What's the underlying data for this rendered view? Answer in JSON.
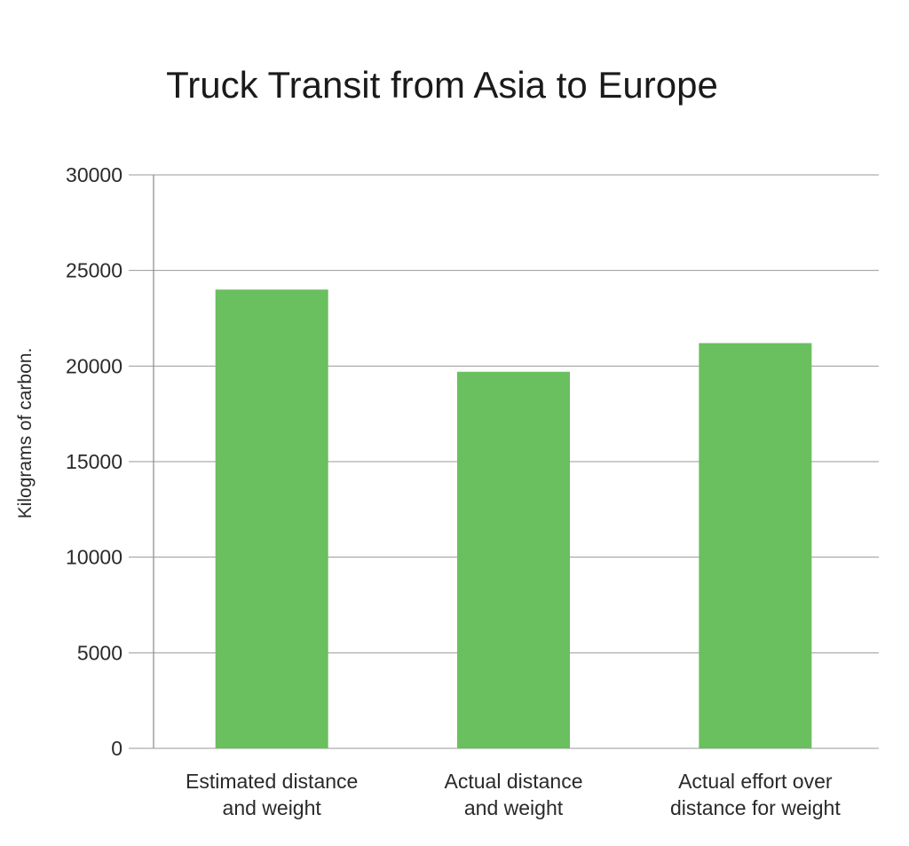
{
  "chart_data": {
    "type": "bar",
    "title": "Truck Transit from Asia to Europe",
    "xlabel": "",
    "ylabel": "Kilograms of carbon.",
    "ylim": [
      0,
      30000
    ],
    "yticks": [
      "0",
      "5000",
      "10000",
      "15000",
      "20000",
      "25000",
      "30000"
    ],
    "categories": [
      [
        "Estimated distance",
        "and weight"
      ],
      [
        "Actual distance",
        "and weight"
      ],
      [
        "Actual effort over",
        "distance for weight"
      ]
    ],
    "values": [
      24000,
      19700,
      21200
    ],
    "grid": true,
    "legend": "none",
    "bar_color": "#6abf5e"
  }
}
